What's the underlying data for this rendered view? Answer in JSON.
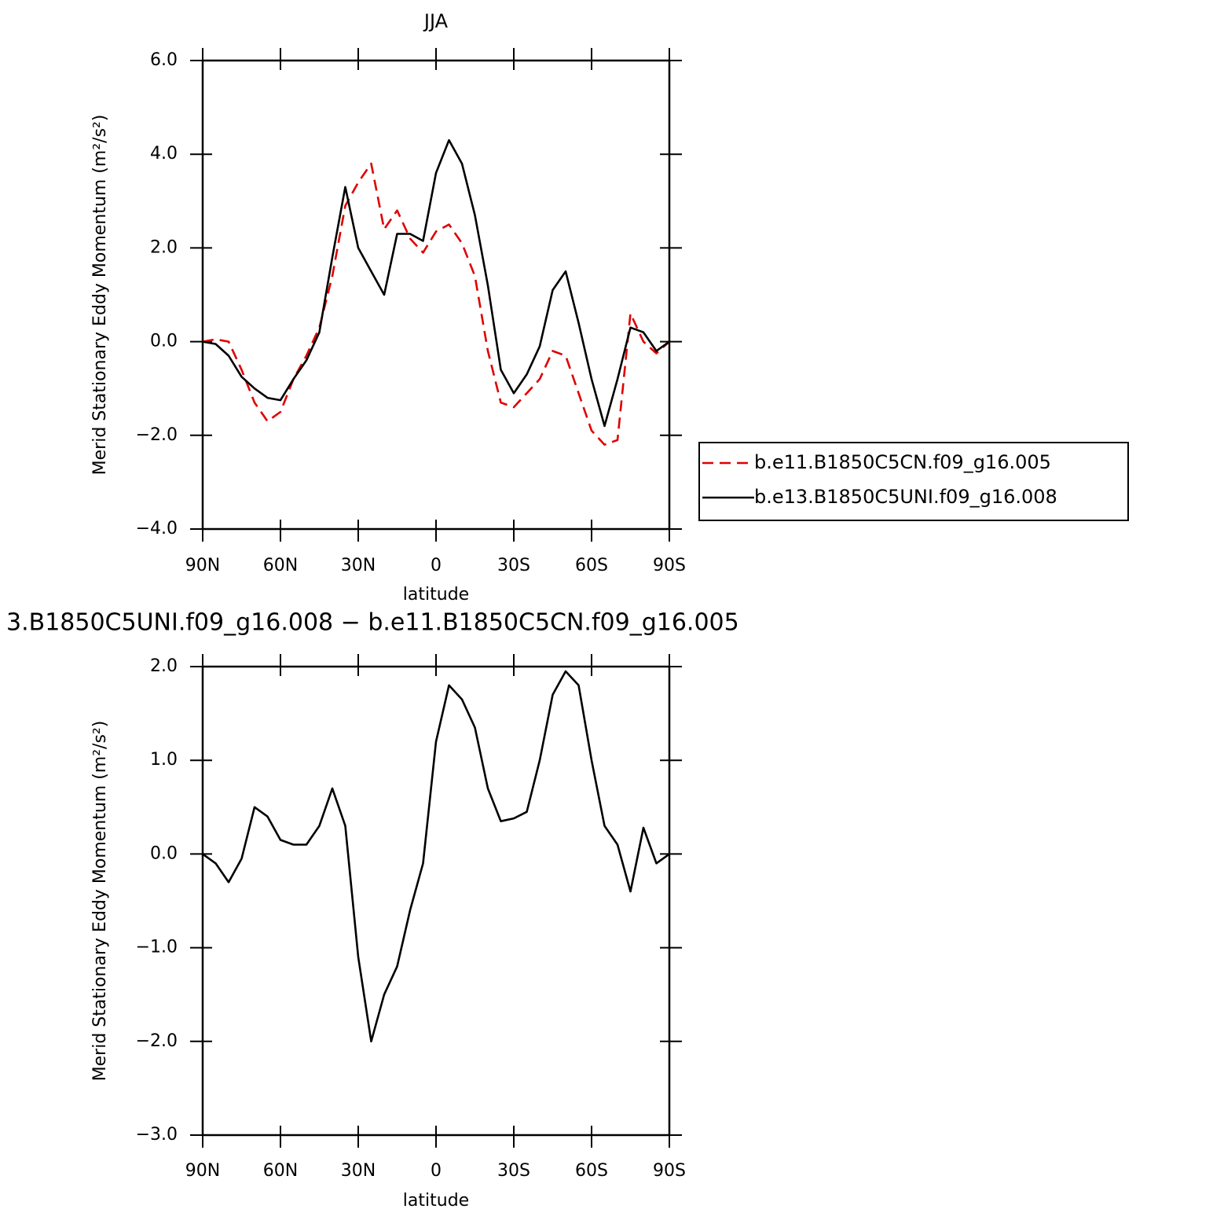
{
  "chart_data": [
    {
      "type": "line",
      "title": "JJA",
      "xlabel": "latitude",
      "ylabel": "Merid Stationary Eddy Momentum (m²/s²)",
      "x": [
        90,
        85,
        80,
        75,
        70,
        65,
        60,
        55,
        50,
        45,
        40,
        35,
        30,
        25,
        20,
        15,
        10,
        5,
        0,
        -5,
        -10,
        -15,
        -20,
        -25,
        -30,
        -35,
        -40,
        -45,
        -50,
        -55,
        -60,
        -65,
        -70,
        -75,
        -80,
        -85,
        -90
      ],
      "series": [
        {
          "name": "b.e11.B1850C5CN.f09_g16.005",
          "color": "#e00000",
          "style": "dashed",
          "values": [
            0,
            0.05,
            0,
            -0.6,
            -1.3,
            -1.7,
            -1.5,
            -0.8,
            -0.3,
            0.3,
            1.4,
            2.9,
            3.4,
            3.8,
            2.4,
            2.8,
            2.2,
            1.9,
            2.35,
            2.5,
            2.1,
            1.4,
            -0.2,
            -1.3,
            -1.4,
            -1.1,
            -0.8,
            -0.2,
            -0.3,
            -1.1,
            -1.9,
            -2.2,
            -2.1,
            0.6,
            0,
            -0.25,
            0
          ]
        },
        {
          "name": "b.e13.B1850C5UNI.f09_g16.008",
          "color": "#000000",
          "style": "solid",
          "values": [
            0,
            -0.05,
            -0.3,
            -0.75,
            -1.0,
            -1.2,
            -1.25,
            -0.8,
            -0.4,
            0.2,
            1.8,
            3.3,
            2.0,
            1.5,
            1.0,
            2.3,
            2.3,
            2.15,
            3.6,
            4.3,
            3.8,
            2.7,
            1.2,
            -0.6,
            -1.1,
            -0.7,
            -0.1,
            1.1,
            1.5,
            0.4,
            -0.8,
            -1.8,
            -0.8,
            0.3,
            0.2,
            -0.2,
            0
          ]
        }
      ],
      "xlim": [
        90,
        -90
      ],
      "xticks": [
        {
          "value": 90,
          "label": "90N"
        },
        {
          "value": 60,
          "label": "60N"
        },
        {
          "value": 30,
          "label": "30N"
        },
        0,
        {
          "value": -30,
          "label": "30S"
        },
        {
          "value": -60,
          "label": "60S"
        },
        {
          "value": -90,
          "label": "90S"
        }
      ],
      "ylim": [
        -4,
        6
      ],
      "yticks": [
        {
          "value": -4,
          "label": "−4.0"
        },
        {
          "value": -2,
          "label": "−2.0"
        },
        {
          "value": 0,
          "label": "0.0"
        },
        {
          "value": 2,
          "label": "2.0"
        },
        {
          "value": 4,
          "label": "4.0"
        },
        {
          "value": 6,
          "label": "6.0"
        }
      ]
    },
    {
      "type": "line",
      "title": "3.B1850C5UNI.f09_g16.008 − b.e11.B1850C5CN.f09_g16.005",
      "xlabel": "latitude",
      "ylabel": "Merid Stationary Eddy Momentum (m²/s²)",
      "x": [
        90,
        85,
        80,
        75,
        70,
        65,
        60,
        55,
        50,
        45,
        40,
        35,
        30,
        25,
        20,
        15,
        10,
        5,
        0,
        -5,
        -10,
        -15,
        -20,
        -25,
        -30,
        -35,
        -40,
        -45,
        -50,
        -55,
        -60,
        -65,
        -70,
        -75,
        -80,
        -85,
        -90
      ],
      "series": [
        {
          "color": "#000000",
          "style": "solid",
          "values": [
            0,
            -0.1,
            -0.3,
            -0.05,
            0.5,
            0.4,
            0.15,
            0.1,
            0.1,
            0.3,
            0.7,
            0.3,
            -1.1,
            -2.0,
            -1.5,
            -1.2,
            -0.6,
            -0.1,
            1.2,
            1.8,
            1.65,
            1.35,
            0.7,
            0.35,
            0.38,
            0.45,
            1.0,
            1.7,
            1.95,
            1.8,
            1.0,
            0.3,
            0.1,
            -0.4,
            0.28,
            -0.1,
            0
          ]
        }
      ],
      "xlim": [
        90,
        -90
      ],
      "xticks": [
        {
          "value": 90,
          "label": "90N"
        },
        {
          "value": 60,
          "label": "60N"
        },
        {
          "value": 30,
          "label": "30N"
        },
        0,
        {
          "value": -30,
          "label": "30S"
        },
        {
          "value": -60,
          "label": "60S"
        },
        {
          "value": -90,
          "label": "90S"
        }
      ],
      "ylim": [
        -3,
        2
      ],
      "yticks": [
        {
          "value": -3,
          "label": "−3.0"
        },
        {
          "value": -2,
          "label": "−2.0"
        },
        {
          "value": -1,
          "label": "−1.0"
        },
        {
          "value": 0,
          "label": "0.0"
        },
        {
          "value": 1,
          "label": "1.0"
        },
        {
          "value": 2,
          "label": "2.0"
        }
      ]
    }
  ]
}
